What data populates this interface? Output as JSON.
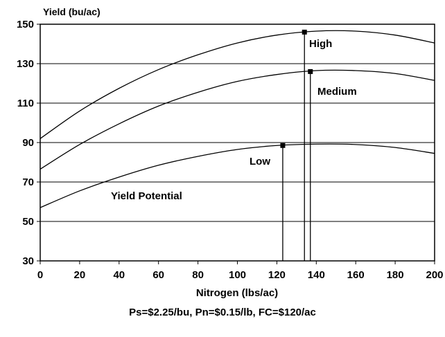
{
  "chart_data": {
    "type": "line",
    "ylabel": "Yield (bu/ac)",
    "xlabel": "Nitrogen (lbs/ac)",
    "xlim": [
      0,
      200
    ],
    "ylim": [
      30,
      150
    ],
    "x_ticks": [
      0,
      20,
      40,
      60,
      80,
      100,
      120,
      140,
      160,
      180,
      200
    ],
    "y_ticks": [
      30,
      50,
      70,
      90,
      110,
      130,
      150
    ],
    "grid": "horizontal",
    "legend": "none",
    "x": [
      0,
      20,
      40,
      60,
      80,
      100,
      120,
      140,
      160,
      180,
      200
    ],
    "series": [
      {
        "name": "High",
        "values": [
          92,
          106,
          117.5,
          127,
          134.5,
          140.5,
          144.5,
          146.5,
          146.5,
          144.5,
          140.5
        ],
        "optimum": {
          "x": 134,
          "y": 146
        }
      },
      {
        "name": "Medium",
        "values": [
          76.5,
          89,
          99.5,
          108.5,
          115.5,
          121,
          124.5,
          126.5,
          126.5,
          125,
          121.5
        ],
        "optimum": {
          "x": 137,
          "y": 126
        }
      },
      {
        "name": "Low",
        "values": [
          57,
          65.5,
          72.5,
          78.5,
          83,
          86.5,
          88.5,
          89.2,
          89,
          87.5,
          84.5
        ],
        "optimum": {
          "x": 123,
          "y": 88.5
        }
      }
    ],
    "annotations": [
      "Yield Potential"
    ],
    "footnote": "Ps=$2.25/bu, Pn=$0.15/lb, FC=$120/ac",
    "colors": {
      "line": "#000000",
      "grid": "#000000",
      "background": "#ffffff"
    }
  }
}
